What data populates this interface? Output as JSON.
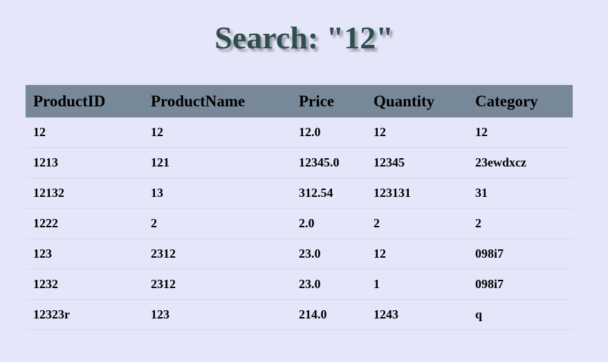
{
  "title": "Search: \"12\"",
  "table": {
    "headers": [
      "ProductID",
      "ProductName",
      "Price",
      "Quantity",
      "Category"
    ],
    "rows": [
      [
        "12",
        "12",
        "12.0",
        "12",
        "12"
      ],
      [
        "1213",
        "121",
        "12345.0",
        "12345",
        "23ewdxcz"
      ],
      [
        "12132",
        "13",
        "312.54",
        "123131",
        "31"
      ],
      [
        "1222",
        "2",
        "2.0",
        "2",
        "2"
      ],
      [
        "123",
        "2312",
        "23.0",
        "12",
        "098i7"
      ],
      [
        "1232",
        "2312",
        "23.0",
        "1",
        "098i7"
      ],
      [
        "12323r",
        "123",
        "214.0",
        "1243",
        "q"
      ]
    ]
  },
  "colors": {
    "background": "#e6e6fa",
    "header_bg": "#778899",
    "title_color": "#2f4f4f"
  }
}
